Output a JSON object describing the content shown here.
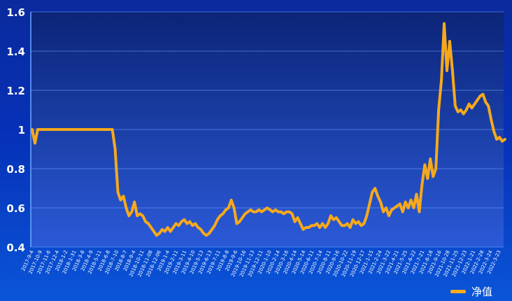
{
  "colors": {
    "background_top": "#0a2a9c",
    "background_bottom": "#0a55d8",
    "plot_background": "#1c3f9a",
    "plot_band_dark": "#0b2477",
    "series": "#f6a91c",
    "grid": "#6ea8ff",
    "text": "#ffffff"
  },
  "chart_data": {
    "type": "line",
    "title": "",
    "xlabel": "",
    "ylabel": "",
    "ylim": [
      0.4,
      1.6
    ],
    "yticks": [
      "0.4",
      "0.6",
      "0.8",
      "1",
      "1.2",
      "1.4",
      "1.6"
    ],
    "grid": true,
    "legend_position": "bottom-right",
    "xtick_labels": [
      "2017-9-4",
      "2017-10-9",
      "2017-11-6",
      "2017-12-4",
      "2018-1-2",
      "2018-1-31",
      "2018-3-8",
      "2018-4-9",
      "2018-5-11",
      "2018-6-8",
      "2018-7-10",
      "2018-8-7",
      "2018-9-4",
      "2018-10-11",
      "2018-11-08",
      "2018-12-06",
      "2019-1-4",
      "2019-2-11",
      "2019-3-11",
      "2019-4-10",
      "2019-5-13",
      "2019-6-13",
      "2019-7-11",
      "2019-8-8",
      "2019-9-6",
      "2019-10-16",
      "2019-11-13",
      "2019-12-11",
      "2020-1-10",
      "2020-2-14",
      "2020-3-16",
      "2020-4-14",
      "2020-5-14",
      "2020-6-11",
      "2020-7-14",
      "2020-8-11",
      "2020-9-16",
      "2020-10-22",
      "2020-11-19",
      "2020-12-17",
      "2021-1-15",
      "2021-2-24",
      "2021-3-22",
      "2021-4-21",
      "2021-5-25",
      "2021-6-22",
      "2021-7-21",
      "2021-8-18",
      "2021-9-16",
      "2021-10-28",
      "2021-11-25",
      "2021-12-23",
      "2022-1-21",
      "2022-2-28",
      "2022-3-24",
      "2022-3-23"
    ],
    "series": [
      {
        "name": "净值",
        "color": "#f6a91c",
        "values": [
          1.0,
          0.93,
          1.0,
          1.0,
          1.0,
          1.0,
          1.0,
          1.0,
          1.0,
          1.0,
          1.0,
          1.0,
          1.0,
          1.0,
          1.0,
          1.0,
          1.0,
          1.0,
          1.0,
          1.0,
          1.0,
          1.0,
          1.0,
          1.0,
          1.0,
          1.0,
          1.0,
          1.0,
          1.0,
          1.0,
          0.9,
          0.68,
          0.64,
          0.66,
          0.6,
          0.56,
          0.58,
          0.63,
          0.56,
          0.57,
          0.56,
          0.53,
          0.52,
          0.5,
          0.48,
          0.46,
          0.47,
          0.49,
          0.48,
          0.5,
          0.48,
          0.5,
          0.52,
          0.51,
          0.53,
          0.54,
          0.52,
          0.53,
          0.51,
          0.52,
          0.5,
          0.49,
          0.47,
          0.46,
          0.47,
          0.49,
          0.51,
          0.54,
          0.56,
          0.57,
          0.59,
          0.6,
          0.64,
          0.6,
          0.52,
          0.53,
          0.55,
          0.57,
          0.58,
          0.59,
          0.58,
          0.58,
          0.59,
          0.58,
          0.59,
          0.6,
          0.59,
          0.58,
          0.59,
          0.58,
          0.58,
          0.57,
          0.58,
          0.58,
          0.57,
          0.53,
          0.55,
          0.52,
          0.49,
          0.5,
          0.5,
          0.51,
          0.51,
          0.52,
          0.5,
          0.52,
          0.5,
          0.52,
          0.56,
          0.54,
          0.55,
          0.53,
          0.51,
          0.51,
          0.52,
          0.5,
          0.54,
          0.52,
          0.53,
          0.51,
          0.52,
          0.56,
          0.62,
          0.68,
          0.7,
          0.66,
          0.63,
          0.58,
          0.6,
          0.56,
          0.59,
          0.6,
          0.61,
          0.62,
          0.58,
          0.63,
          0.6,
          0.64,
          0.6,
          0.67,
          0.58,
          0.72,
          0.82,
          0.75,
          0.85,
          0.76,
          0.8,
          1.1,
          1.25,
          1.54,
          1.3,
          1.45,
          1.3,
          1.12,
          1.09,
          1.1,
          1.08,
          1.1,
          1.13,
          1.11,
          1.13,
          1.15,
          1.17,
          1.18,
          1.14,
          1.12,
          1.05,
          0.99,
          0.95,
          0.96,
          0.94,
          0.95
        ]
      }
    ]
  },
  "legend": {
    "label": "净值"
  }
}
